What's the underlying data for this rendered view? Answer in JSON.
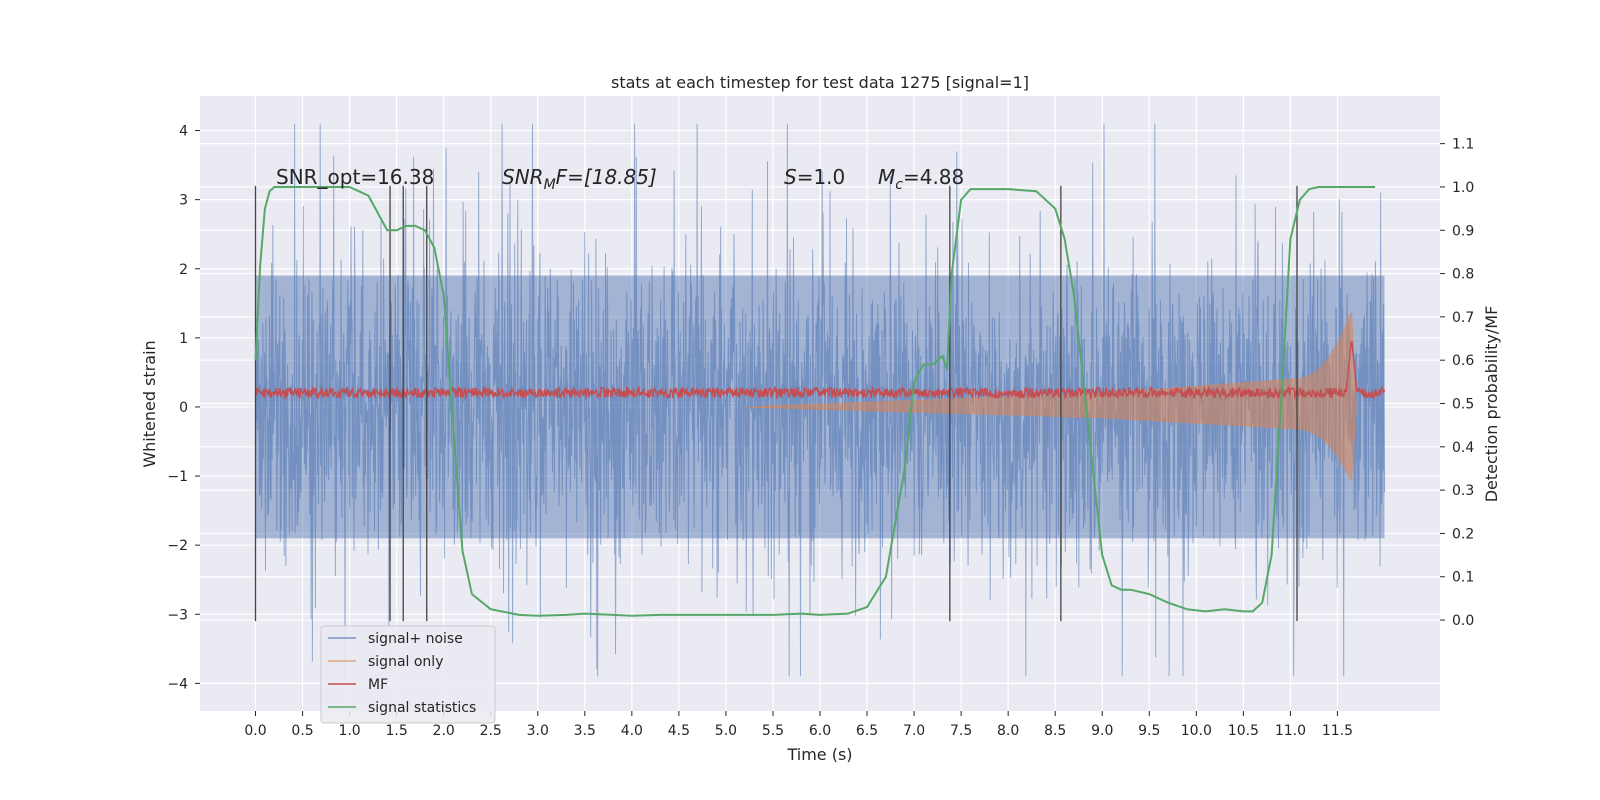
{
  "chart_data": {
    "type": "line",
    "title": "stats at each timestep for test data 1275 [signal=1]",
    "xlabel": "Time (s)",
    "ylabel": "Whitened strain",
    "y2label": "Detection probability/MF",
    "xlim": [
      -0.59,
      12.59
    ],
    "ylim": [
      -4.4,
      4.5
    ],
    "y2lim": [
      -0.21,
      1.21
    ],
    "xticks": [
      0.0,
      0.5,
      1.0,
      1.5,
      2.0,
      2.5,
      3.0,
      3.5,
      4.0,
      4.5,
      5.0,
      5.5,
      6.0,
      6.5,
      7.0,
      7.5,
      8.0,
      8.5,
      9.0,
      9.5,
      10.0,
      10.5,
      11.0,
      11.5
    ],
    "xtick_labels": [
      "0.0",
      "0.5",
      "1.0",
      "1.5",
      "2.0",
      "2.5",
      "3.0",
      "3.5",
      "4.0",
      "4.5",
      "5.0",
      "5.5",
      "6.0",
      "6.5",
      "7.0",
      "7.5",
      "8.0",
      "8.5",
      "9.0",
      "9.5",
      "10.0",
      "10.5",
      "11.0",
      "11.5"
    ],
    "yticks": [
      4,
      3,
      2,
      1,
      0,
      -1,
      -2,
      -3,
      -4
    ],
    "ytick_labels": [
      "4",
      "3",
      "2",
      "1",
      "0",
      "−1",
      "−2",
      "−3",
      "−4"
    ],
    "y2ticks": [
      1.1,
      1.0,
      0.9,
      0.8,
      0.7,
      0.6,
      0.5,
      0.4,
      0.3,
      0.2,
      0.1,
      0.0
    ],
    "y2tick_labels": [
      "1.1",
      "1.0",
      "0.9",
      "0.8",
      "0.7",
      "0.6",
      "0.5",
      "0.4",
      "0.3",
      "0.2",
      "0.1",
      "0.0"
    ],
    "grid": true,
    "legend_position": "lower-left",
    "series": [
      {
        "name": "signal+ noise",
        "color": "#4c72b0",
        "axis": "left",
        "band": {
          "x_start": 0.0,
          "x_end": 12.0,
          "core_amplitude": 2.0,
          "peak_max": 4.1,
          "peak_min": -3.9
        }
      },
      {
        "name": "signal only",
        "color": "#dd8452",
        "axis": "left",
        "chirp": {
          "x_start": 5.2,
          "x_merger": 11.65,
          "x_end": 11.7,
          "amplitude_at_5_2": 0.0,
          "amplitude_at_9": 0.2,
          "amplitude_at_11": 0.4,
          "amplitude_at_merger": 1.4
        }
      },
      {
        "name": "MF",
        "color": "#c44e52",
        "axis": "right",
        "baseline": 0.52,
        "noise": 0.015,
        "peak": {
          "x": 11.65,
          "value": 0.65
        }
      },
      {
        "name": "signal statistics",
        "color": "#55a868",
        "axis": "right",
        "x": [
          0.0,
          0.05,
          0.1,
          0.15,
          0.2,
          0.3,
          0.5,
          0.8,
          1.0,
          1.1,
          1.2,
          1.3,
          1.4,
          1.5,
          1.6,
          1.7,
          1.8,
          1.9,
          2.0,
          2.05,
          2.1,
          2.15,
          2.2,
          2.3,
          2.5,
          2.8,
          3.0,
          3.3,
          3.5,
          3.8,
          4.0,
          4.3,
          4.5,
          5.0,
          5.5,
          5.8,
          6.0,
          6.3,
          6.5,
          6.7,
          6.9,
          7.0,
          7.1,
          7.2,
          7.3,
          7.35,
          7.4,
          7.5,
          7.6,
          7.8,
          8.0,
          8.3,
          8.5,
          8.6,
          8.7,
          8.8,
          8.9,
          9.0,
          9.1,
          9.2,
          9.3,
          9.5,
          9.7,
          9.9,
          10.1,
          10.3,
          10.5,
          10.6,
          10.7,
          10.8,
          10.9,
          11.0,
          11.1,
          11.2,
          11.3,
          11.5,
          11.7,
          11.9
        ],
        "values": [
          0.6,
          0.82,
          0.95,
          0.99,
          1.0,
          1.0,
          1.0,
          1.0,
          1.0,
          0.99,
          0.98,
          0.94,
          0.9,
          0.9,
          0.91,
          0.91,
          0.9,
          0.86,
          0.75,
          0.6,
          0.45,
          0.3,
          0.16,
          0.06,
          0.025,
          0.012,
          0.01,
          0.012,
          0.015,
          0.012,
          0.01,
          0.012,
          0.012,
          0.012,
          0.012,
          0.015,
          0.012,
          0.015,
          0.03,
          0.1,
          0.35,
          0.55,
          0.59,
          0.59,
          0.61,
          0.58,
          0.8,
          0.97,
          0.995,
          0.995,
          0.995,
          0.99,
          0.95,
          0.88,
          0.75,
          0.55,
          0.35,
          0.15,
          0.08,
          0.07,
          0.07,
          0.06,
          0.04,
          0.025,
          0.02,
          0.025,
          0.02,
          0.02,
          0.04,
          0.15,
          0.5,
          0.88,
          0.97,
          0.995,
          1.0,
          1.0,
          1.0,
          1.0
        ]
      }
    ],
    "vlines": {
      "color": "#444444",
      "x": [
        0.0,
        1.43,
        1.57,
        1.82,
        7.38,
        8.56,
        11.07
      ],
      "y_range": [
        -3.1,
        3.2
      ]
    },
    "annotations": {
      "snr_opt": "SNR_opt=16.38",
      "snr_mf_main": "SNR",
      "snr_mf_sub": "M",
      "snr_mf_rest": "F=[18.85]",
      "s_symbol": "S",
      "s_rest": "=1.0",
      "mc_symbol": "M",
      "mc_sub": "c",
      "mc_rest": "=4.88"
    }
  }
}
